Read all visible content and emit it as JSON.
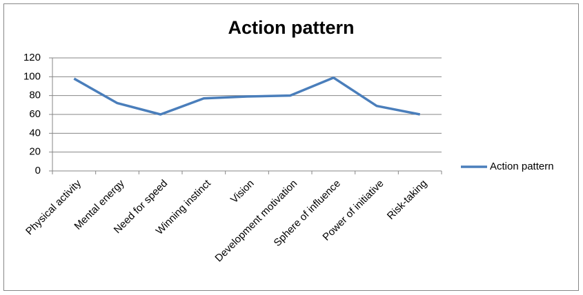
{
  "chart_data": {
    "type": "line",
    "title": "Action pattern",
    "categories": [
      "Physical activity",
      "Mental energy",
      "Need for speed",
      "Winning instinct",
      "Vision",
      "Development motivation",
      "Sphere of influence",
      "Power of initiative",
      "Risk-taking"
    ],
    "series": [
      {
        "name": "Action pattern",
        "color": "#4a7ebb",
        "values": [
          98,
          72,
          60,
          77,
          79,
          80,
          99,
          69,
          60
        ]
      }
    ],
    "ylim": [
      0,
      120
    ],
    "yticks": [
      0,
      20,
      40,
      60,
      80,
      100,
      120
    ],
    "grid": true,
    "legend": "right"
  }
}
